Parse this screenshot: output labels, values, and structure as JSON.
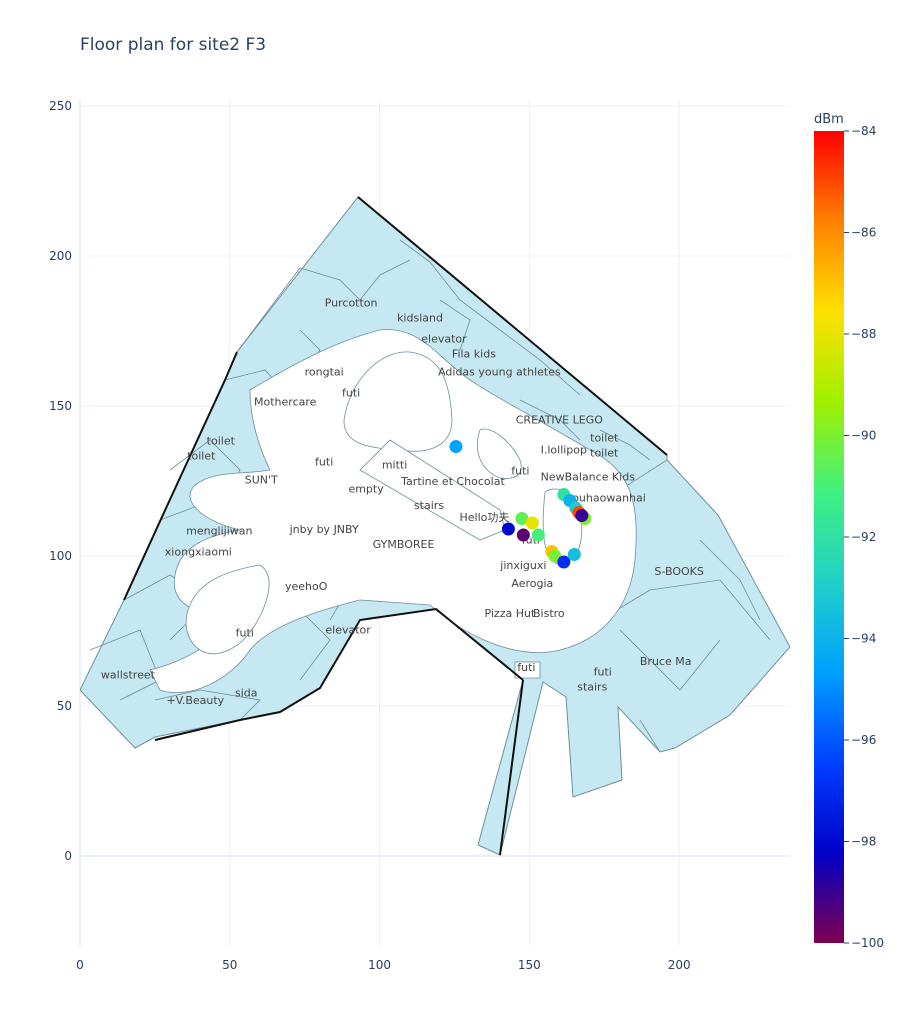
{
  "chart_data": {
    "type": "scatter",
    "title": "Floor plan for site2 F3",
    "xlabel": "",
    "ylabel": "",
    "xlim": [
      0,
      237
    ],
    "ylim": [
      -30,
      252
    ],
    "x_ticks": [
      0,
      50,
      100,
      150,
      200
    ],
    "y_ticks": [
      0,
      50,
      100,
      150,
      200,
      250
    ],
    "grid": true,
    "colorbar": {
      "title": "dBm",
      "min": -100,
      "max": -84,
      "ticks": [
        -84,
        -86,
        -88,
        -90,
        -92,
        -94,
        -96,
        -98,
        -100
      ],
      "colorscale": "jet",
      "stops": [
        "#80004f",
        "#0000c8",
        "#0040ff",
        "#00a0ff",
        "#20d0c8",
        "#40f080",
        "#a0f000",
        "#ffe000",
        "#ff8000",
        "#ff0000"
      ]
    },
    "points": [
      {
        "x": 125.5,
        "y": 136.5,
        "dbm": -94.5
      },
      {
        "x": 143.0,
        "y": 109.0,
        "dbm": -98.0
      },
      {
        "x": 147.5,
        "y": 112.5,
        "dbm": -90.5
      },
      {
        "x": 148.0,
        "y": 107.0,
        "dbm": -99.5
      },
      {
        "x": 151.0,
        "y": 111.0,
        "dbm": -88.0
      },
      {
        "x": 153.0,
        "y": 107.0,
        "dbm": -91.0
      },
      {
        "x": 157.5,
        "y": 101.5,
        "dbm": -87.0
      },
      {
        "x": 158.5,
        "y": 100.0,
        "dbm": -90.0
      },
      {
        "x": 161.5,
        "y": 98.0,
        "dbm": -97.0
      },
      {
        "x": 165.0,
        "y": 100.5,
        "dbm": -93.5
      },
      {
        "x": 161.5,
        "y": 120.5,
        "dbm": -92.0
      },
      {
        "x": 163.5,
        "y": 118.5,
        "dbm": -94.0
      },
      {
        "x": 165.5,
        "y": 116.0,
        "dbm": -93.0
      },
      {
        "x": 168.5,
        "y": 112.5,
        "dbm": -90.0
      },
      {
        "x": 166.5,
        "y": 114.5,
        "dbm": -85.0
      },
      {
        "x": 167.5,
        "y": 113.5,
        "dbm": -99.0
      }
    ],
    "shop_labels": [
      {
        "text": "Purcotton",
        "x": 90.5,
        "y": 184.5
      },
      {
        "text": "kidsland",
        "x": 113.5,
        "y": 179.5
      },
      {
        "text": "elevator",
        "x": 121.5,
        "y": 172.5
      },
      {
        "text": "Fila kids",
        "x": 131.5,
        "y": 167.5
      },
      {
        "text": "rongtai",
        "x": 81.5,
        "y": 161.5
      },
      {
        "text": "Adidas young athletes",
        "x": 140.0,
        "y": 161.5
      },
      {
        "text": "futi",
        "x": 90.5,
        "y": 154.5
      },
      {
        "text": "Mothercare",
        "x": 68.5,
        "y": 151.5
      },
      {
        "text": "CREATIVE LEGO",
        "x": 160.0,
        "y": 145.5
      },
      {
        "text": "toilet",
        "x": 47.0,
        "y": 138.5
      },
      {
        "text": "toilet",
        "x": 175.0,
        "y": 139.5
      },
      {
        "text": "I.lollipop",
        "x": 161.5,
        "y": 135.5
      },
      {
        "text": "toilet",
        "x": 175.0,
        "y": 134.5
      },
      {
        "text": "toilet",
        "x": 40.5,
        "y": 133.5
      },
      {
        "text": "futi",
        "x": 81.5,
        "y": 131.5
      },
      {
        "text": "mitti",
        "x": 105.0,
        "y": 130.5
      },
      {
        "text": "futi",
        "x": 147.0,
        "y": 128.5
      },
      {
        "text": "NewBalance Kids",
        "x": 169.5,
        "y": 126.5
      },
      {
        "text": "SUN'T",
        "x": 60.5,
        "y": 125.5
      },
      {
        "text": "Tartine et Chocolat",
        "x": 124.5,
        "y": 125.0
      },
      {
        "text": "empty",
        "x": 95.5,
        "y": 122.5
      },
      {
        "text": "youhaowanhai",
        "x": 175.5,
        "y": 119.5
      },
      {
        "text": "stairs",
        "x": 116.5,
        "y": 117.0
      },
      {
        "text": "Hello功夫",
        "x": 135.0,
        "y": 113.0
      },
      {
        "text": "menglijiwan",
        "x": 46.5,
        "y": 108.5
      },
      {
        "text": "jnby by JNBY",
        "x": 81.5,
        "y": 109.0
      },
      {
        "text": "futi",
        "x": 150.5,
        "y": 105.5
      },
      {
        "text": "GYMBOREE",
        "x": 108.0,
        "y": 104.0
      },
      {
        "text": "xiongxiaomi",
        "x": 39.5,
        "y": 101.5
      },
      {
        "text": "jinxiguxi",
        "x": 148.0,
        "y": 97.0
      },
      {
        "text": "S-BOOKS",
        "x": 200.0,
        "y": 95.0
      },
      {
        "text": "yeehoO",
        "x": 75.5,
        "y": 90.0
      },
      {
        "text": "Aerogia",
        "x": 151.0,
        "y": 91.0
      },
      {
        "text": "Pizza Hut",
        "x": 143.5,
        "y": 81.0
      },
      {
        "text": "Bistro",
        "x": 156.5,
        "y": 81.0
      },
      {
        "text": "futi",
        "x": 55.0,
        "y": 74.5
      },
      {
        "text": "elevator",
        "x": 89.5,
        "y": 75.5
      },
      {
        "text": "futi",
        "x": 149.0,
        "y": 63.0
      },
      {
        "text": "Bruce Ma",
        "x": 195.5,
        "y": 65.0
      },
      {
        "text": "futi",
        "x": 174.5,
        "y": 61.5
      },
      {
        "text": "wallstreet",
        "x": 16.0,
        "y": 60.5
      },
      {
        "text": "stairs",
        "x": 171.0,
        "y": 56.5
      },
      {
        "text": "sida",
        "x": 55.5,
        "y": 54.5
      },
      {
        "text": "+V.Beauty",
        "x": 38.5,
        "y": 52.0
      }
    ]
  }
}
